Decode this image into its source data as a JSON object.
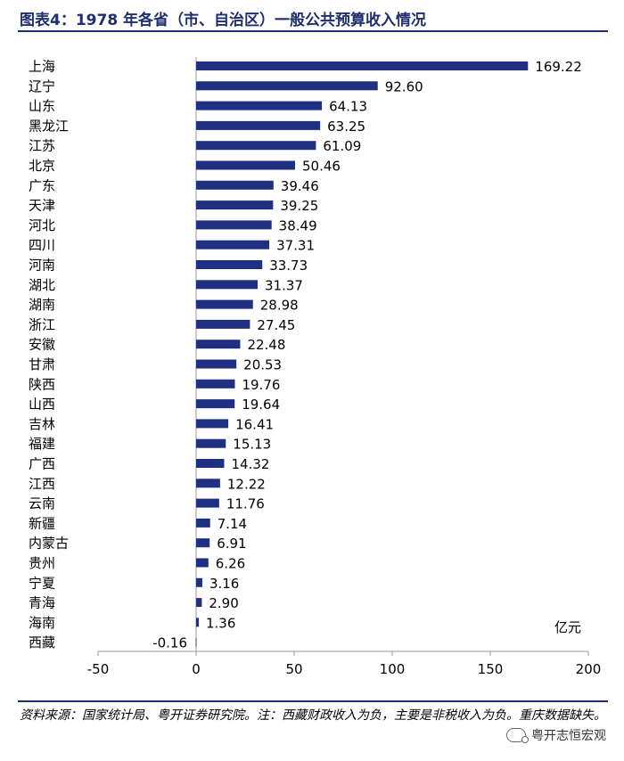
{
  "title": "图表4：1978 年各省（市、自治区）一般公共预算收入情况",
  "unit_label": "亿元",
  "footer": "资料来源：国家统计局、粤开证券研究院。注：西藏财政收入为负，主要是非税收入为负。重庆数据缺失。",
  "watermark": "粤开志恒宏观",
  "colors": {
    "bar": "#1f2f82",
    "title": "#1f2f6e"
  },
  "chart_data": {
    "type": "bar",
    "orientation": "horizontal",
    "title": "1978 年各省（市、自治区）一般公共预算收入情况",
    "unit": "亿元",
    "xlim": [
      -50,
      200
    ],
    "xticks": [
      "-50",
      "0",
      "50",
      "100",
      "150",
      "200"
    ],
    "xtick_values": [
      -50,
      0,
      50,
      100,
      150,
      200
    ],
    "categories": [
      "上海",
      "辽宁",
      "山东",
      "黑龙江",
      "江苏",
      "北京",
      "广东",
      "天津",
      "河北",
      "四川",
      "河南",
      "湖北",
      "湖南",
      "浙江",
      "安徽",
      "甘肃",
      "陕西",
      "山西",
      "吉林",
      "福建",
      "广西",
      "江西",
      "云南",
      "新疆",
      "内蒙古",
      "贵州",
      "宁夏",
      "青海",
      "海南",
      "西藏"
    ],
    "values": [
      169.22,
      92.6,
      64.13,
      63.25,
      61.09,
      50.46,
      39.46,
      39.25,
      38.49,
      37.31,
      33.73,
      31.37,
      28.98,
      27.45,
      22.48,
      20.53,
      19.76,
      19.64,
      16.41,
      15.13,
      14.32,
      12.22,
      11.76,
      7.14,
      6.91,
      6.26,
      3.16,
      2.9,
      1.36,
      -0.16
    ],
    "labels": [
      "169.22",
      "92.60",
      "64.13",
      "63.25",
      "61.09",
      "50.46",
      "39.46",
      "39.25",
      "38.49",
      "37.31",
      "33.73",
      "31.37",
      "28.98",
      "27.45",
      "22.48",
      "20.53",
      "19.76",
      "19.64",
      "16.41",
      "15.13",
      "14.32",
      "12.22",
      "11.76",
      "7.14",
      "6.91",
      "6.26",
      "3.16",
      "2.90",
      "1.36",
      "-0.16"
    ]
  }
}
